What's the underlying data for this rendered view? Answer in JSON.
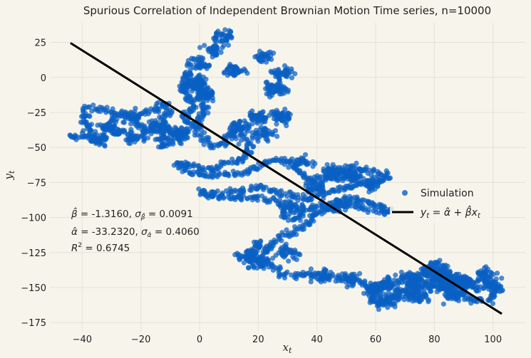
{
  "chart_data": {
    "type": "scatter",
    "title": "Spurious Correlation of Independent Brownian Motion Time series, n=10000",
    "xlabel": "x_t",
    "ylabel": "y_t",
    "xlim": [
      -51,
      111
    ],
    "ylim": [
      -181,
      39
    ],
    "xticks": [
      -40,
      -20,
      0,
      20,
      40,
      60,
      80,
      100
    ],
    "yticks": [
      25,
      0,
      -25,
      -50,
      -75,
      -100,
      -125,
      -150,
      -175
    ],
    "grid": true,
    "legend_position": "center-right",
    "colors": {
      "points": "#0a5fc4",
      "line": "#000000",
      "background": "#f7f5eb",
      "grid": "#e4e2d8"
    },
    "series": [
      {
        "name": "Simulation",
        "kind": "scatter",
        "path": [
          [
            -45,
            -42
          ],
          [
            -39,
            -43
          ],
          [
            -37,
            -38
          ],
          [
            -40,
            -30
          ],
          [
            -38,
            -22
          ],
          [
            -33,
            -23
          ],
          [
            -30,
            -24
          ],
          [
            -29,
            -30
          ],
          [
            -33,
            -35
          ],
          [
            -27,
            -38
          ],
          [
            -24,
            -40
          ],
          [
            -22,
            -43
          ],
          [
            -25,
            -45
          ],
          [
            -20,
            -44
          ],
          [
            -18,
            -38
          ],
          [
            -22,
            -30
          ],
          [
            -18,
            -25
          ],
          [
            -14,
            -22
          ],
          [
            -12,
            -18
          ],
          [
            -10,
            -24
          ],
          [
            -13,
            -30
          ],
          [
            -11,
            -38
          ],
          [
            -14,
            -45
          ],
          [
            -12,
            -50
          ],
          [
            -8,
            -45
          ],
          [
            -5,
            -40
          ],
          [
            -3,
            -34
          ],
          [
            -6,
            -28
          ],
          [
            -2,
            -22
          ],
          [
            -4,
            -15
          ],
          [
            -6,
            -8
          ],
          [
            -5,
            0
          ],
          [
            -3,
            3
          ],
          [
            0,
            0
          ],
          [
            1,
            -8
          ],
          [
            0,
            -15
          ],
          [
            2,
            -22
          ],
          [
            0,
            -30
          ],
          [
            -1,
            -38
          ],
          [
            2,
            -45
          ],
          [
            4,
            -50
          ],
          [
            8,
            -48
          ],
          [
            10,
            -42
          ],
          [
            12,
            -38
          ],
          [
            15,
            -45
          ],
          [
            17,
            -50
          ],
          [
            16,
            -56
          ],
          [
            13,
            -60
          ],
          [
            8,
            -62
          ],
          [
            5,
            -66
          ],
          [
            0,
            -64
          ],
          [
            -4,
            -62
          ],
          [
            -8,
            -62
          ],
          [
            -3,
            -68
          ],
          [
            3,
            -70
          ],
          [
            10,
            -70
          ],
          [
            17,
            -67
          ],
          [
            22,
            -62
          ],
          [
            26,
            -58
          ],
          [
            30,
            -60
          ],
          [
            33,
            -66
          ],
          [
            36,
            -70
          ],
          [
            38,
            -74
          ],
          [
            43,
            -70
          ],
          [
            47,
            -66
          ],
          [
            52,
            -64
          ],
          [
            56,
            -66
          ],
          [
            60,
            -68
          ],
          [
            65,
            -70
          ],
          [
            62,
            -74
          ],
          [
            55,
            -76
          ],
          [
            48,
            -80
          ],
          [
            42,
            -84
          ],
          [
            36,
            -86
          ],
          [
            30,
            -84
          ],
          [
            25,
            -80
          ],
          [
            20,
            -78
          ],
          [
            15,
            -80
          ],
          [
            10,
            -82
          ],
          [
            5,
            -83
          ],
          [
            0,
            -82
          ],
          [
            3,
            -85
          ],
          [
            10,
            -86
          ],
          [
            18,
            -86
          ],
          [
            25,
            -88
          ],
          [
            30,
            -92
          ],
          [
            28,
            -98
          ],
          [
            32,
            -102
          ],
          [
            35,
            -96
          ],
          [
            40,
            -92
          ],
          [
            45,
            -94
          ],
          [
            50,
            -90
          ],
          [
            55,
            -92
          ],
          [
            60,
            -95
          ],
          [
            65,
            -96
          ],
          [
            62,
            -92
          ],
          [
            56,
            -88
          ],
          [
            50,
            -86
          ],
          [
            44,
            -92
          ],
          [
            38,
            -100
          ],
          [
            36,
            -106
          ],
          [
            32,
            -110
          ],
          [
            28,
            -114
          ],
          [
            25,
            -118
          ],
          [
            23,
            -122
          ],
          [
            22,
            -126
          ],
          [
            20,
            -118
          ],
          [
            18,
            -124
          ],
          [
            22,
            -132
          ],
          [
            25,
            -134
          ],
          [
            28,
            -140
          ],
          [
            32,
            -142
          ],
          [
            36,
            -140
          ],
          [
            40,
            -142
          ],
          [
            46,
            -144
          ],
          [
            50,
            -142
          ],
          [
            55,
            -146
          ],
          [
            58,
            -150
          ],
          [
            60,
            -155
          ],
          [
            58,
            -160
          ],
          [
            62,
            -162
          ],
          [
            66,
            -155
          ],
          [
            70,
            -150
          ],
          [
            74,
            -146
          ],
          [
            76,
            -140
          ],
          [
            78,
            -135
          ],
          [
            81,
            -131
          ],
          [
            84,
            -138
          ],
          [
            86,
            -146
          ],
          [
            89,
            -152
          ],
          [
            92,
            -148
          ],
          [
            96,
            -144
          ],
          [
            99,
            -148
          ],
          [
            102,
            -153
          ],
          [
            98,
            -158
          ],
          [
            94,
            -160
          ],
          [
            90,
            -156
          ],
          [
            86,
            -152
          ],
          [
            82,
            -150
          ],
          [
            77,
            -148
          ],
          [
            73,
            -150
          ],
          [
            69,
            -154
          ],
          [
            66,
            -158
          ],
          [
            70,
            -156
          ],
          [
            75,
            -150
          ],
          [
            80,
            -144
          ],
          [
            85,
            -140
          ],
          [
            90,
            -146
          ],
          [
            94,
            -152
          ],
          [
            97,
            -150
          ]
        ],
        "extra_clusters": [
          [
            0,
            10,
            10
          ],
          [
            5,
            20,
            9
          ],
          [
            8,
            30,
            9
          ],
          [
            12,
            5,
            12
          ],
          [
            22,
            15,
            9
          ],
          [
            28,
            3,
            10
          ],
          [
            26,
            -8,
            14
          ],
          [
            20,
            -28,
            13
          ],
          [
            28,
            -28,
            14
          ],
          [
            22,
            -40,
            10
          ],
          [
            14,
            -35,
            10
          ],
          [
            35,
            -60,
            9
          ],
          [
            -35,
            -45,
            11
          ],
          [
            -30,
            -38,
            8
          ],
          [
            -24,
            -28,
            11
          ],
          [
            -15,
            -35,
            12
          ],
          [
            -8,
            -40,
            14
          ],
          [
            -2,
            -5,
            16
          ],
          [
            2,
            -12,
            16
          ],
          [
            45,
            -68,
            15
          ],
          [
            52,
            -70,
            15
          ],
          [
            40,
            -78,
            11
          ],
          [
            58,
            -76,
            9
          ],
          [
            32,
            -92,
            9
          ],
          [
            48,
            -92,
            9
          ],
          [
            30,
            -125,
            10
          ],
          [
            16,
            -128,
            12
          ],
          [
            20,
            -132,
            10
          ],
          [
            42,
            -142,
            10
          ],
          [
            52,
            -144,
            8
          ],
          [
            60,
            -151,
            14
          ],
          [
            65,
            -147,
            11
          ],
          [
            72,
            -143,
            16
          ],
          [
            80,
            -140,
            14
          ],
          [
            84,
            -148,
            16
          ],
          [
            90,
            -145,
            11
          ],
          [
            97,
            -140,
            8
          ],
          [
            100,
            -148,
            7
          ],
          [
            75,
            -155,
            12
          ],
          [
            64,
            -160,
            10
          ],
          [
            86,
            -156,
            10
          ]
        ]
      },
      {
        "name": "y_t = α̂ + β̂x_t",
        "kind": "line",
        "x": [
          -44,
          103
        ],
        "y": [
          24.59,
          -168.78
        ]
      }
    ],
    "stats": {
      "beta": "β̂ = -1.3160",
      "beta_se": "σ_β̂ = 0.0091",
      "alpha": "α̂ = -33.2320",
      "alpha_se": "σ_α̂ = 0.4060",
      "r2": "R² = 0.6745",
      "beta_value": -1.316,
      "beta_se_value": 0.0091,
      "alpha_value": -33.232,
      "alpha_se_value": 0.406,
      "r2_value": 0.6745
    }
  }
}
